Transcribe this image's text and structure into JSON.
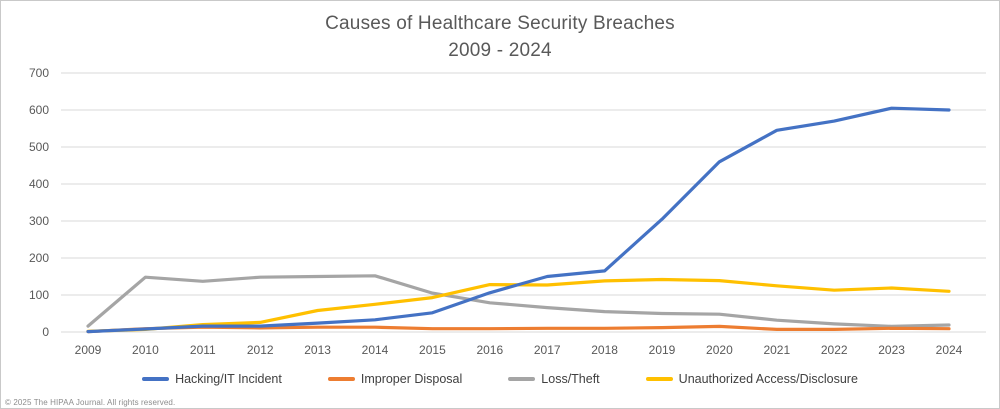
{
  "title": {
    "line1": "Causes of Healthcare Security Breaches",
    "line2": "2009 - 2024"
  },
  "footer": {
    "copyright": "© 2025 The HIPAA Journal. All rights reserved."
  },
  "chart_data": {
    "type": "line",
    "title": "Causes of Healthcare Security Breaches",
    "subtitle": "2009 - 2024",
    "x": [
      "2009",
      "2010",
      "2011",
      "2012",
      "2013",
      "2014",
      "2015",
      "2016",
      "2017",
      "2018",
      "2019",
      "2020",
      "2021",
      "2022",
      "2023",
      "2024"
    ],
    "series": [
      {
        "name": "Hacking/IT Incident",
        "color": "#4472C4",
        "values": [
          1,
          8,
          16,
          16,
          24,
          33,
          52,
          106,
          150,
          165,
          305,
          460,
          545,
          570,
          605,
          600
        ]
      },
      {
        "name": "Improper Disposal",
        "color": "#ED7D31",
        "values": [
          1,
          9,
          13,
          11,
          13,
          13,
          9,
          9,
          10,
          10,
          12,
          15,
          7,
          7,
          10,
          9
        ]
      },
      {
        "name": "Loss/Theft",
        "color": "#A5A5A5",
        "values": [
          16,
          148,
          137,
          148,
          150,
          152,
          105,
          79,
          66,
          55,
          50,
          48,
          32,
          22,
          15,
          19
        ]
      },
      {
        "name": "Unauthorized Access/Disclosure",
        "color": "#FFC000",
        "values": [
          2,
          7,
          20,
          26,
          58,
          75,
          93,
          128,
          127,
          138,
          142,
          139,
          125,
          113,
          119,
          110
        ]
      }
    ],
    "ylim": [
      0,
      700
    ],
    "ytick_step": 100,
    "yticks": [
      0,
      100,
      200,
      300,
      400,
      500,
      600,
      700
    ],
    "xlabel": "",
    "ylabel": "",
    "grid": true,
    "gridline_color": "#D9D9D9",
    "text_color": "#595959",
    "background": "#FFFFFF",
    "legend_position": "bottom",
    "draw_order": [
      2,
      1,
      3,
      0
    ]
  }
}
